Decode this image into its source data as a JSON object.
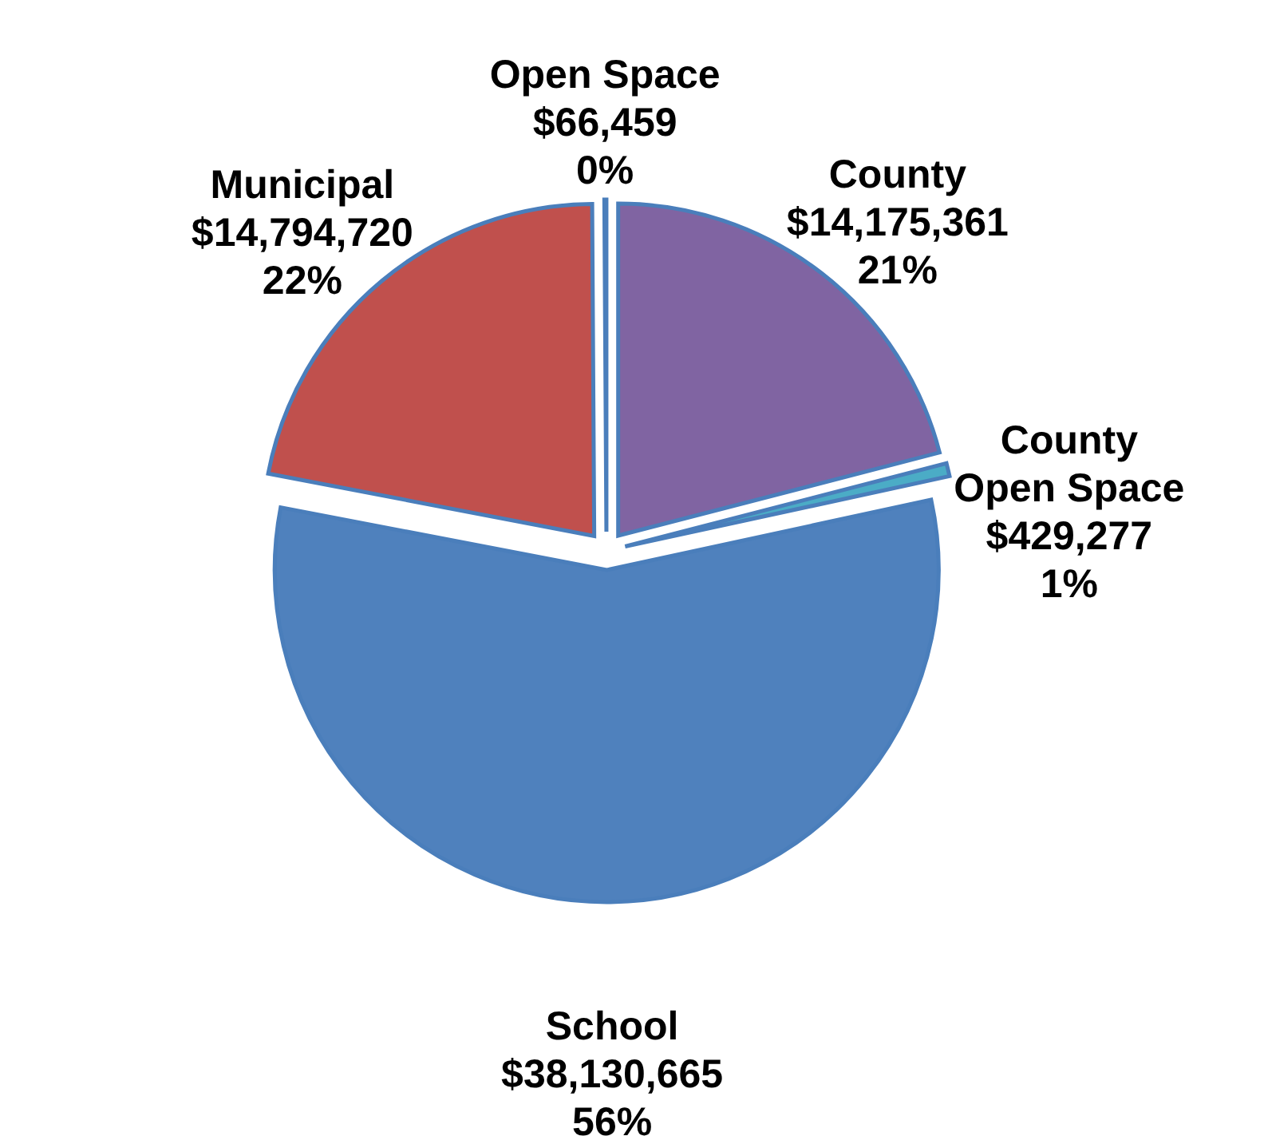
{
  "chart_data": {
    "type": "pie",
    "categories": [
      "County",
      "County\nOpen Space",
      "School",
      "Municipal",
      "Open Space"
    ],
    "values": [
      14175361,
      429277,
      38130665,
      14794720,
      66459
    ],
    "colors": [
      "#8064a2",
      "#4bacc6",
      "#4f81bd",
      "#c0504d",
      "#4f81bd"
    ],
    "value_labels": [
      "$14,175,361\n21%",
      "$429,277\n1%",
      "$38,130,665\n56%",
      "$14,794,720\n22%",
      "$66,459\n0%"
    ]
  }
}
